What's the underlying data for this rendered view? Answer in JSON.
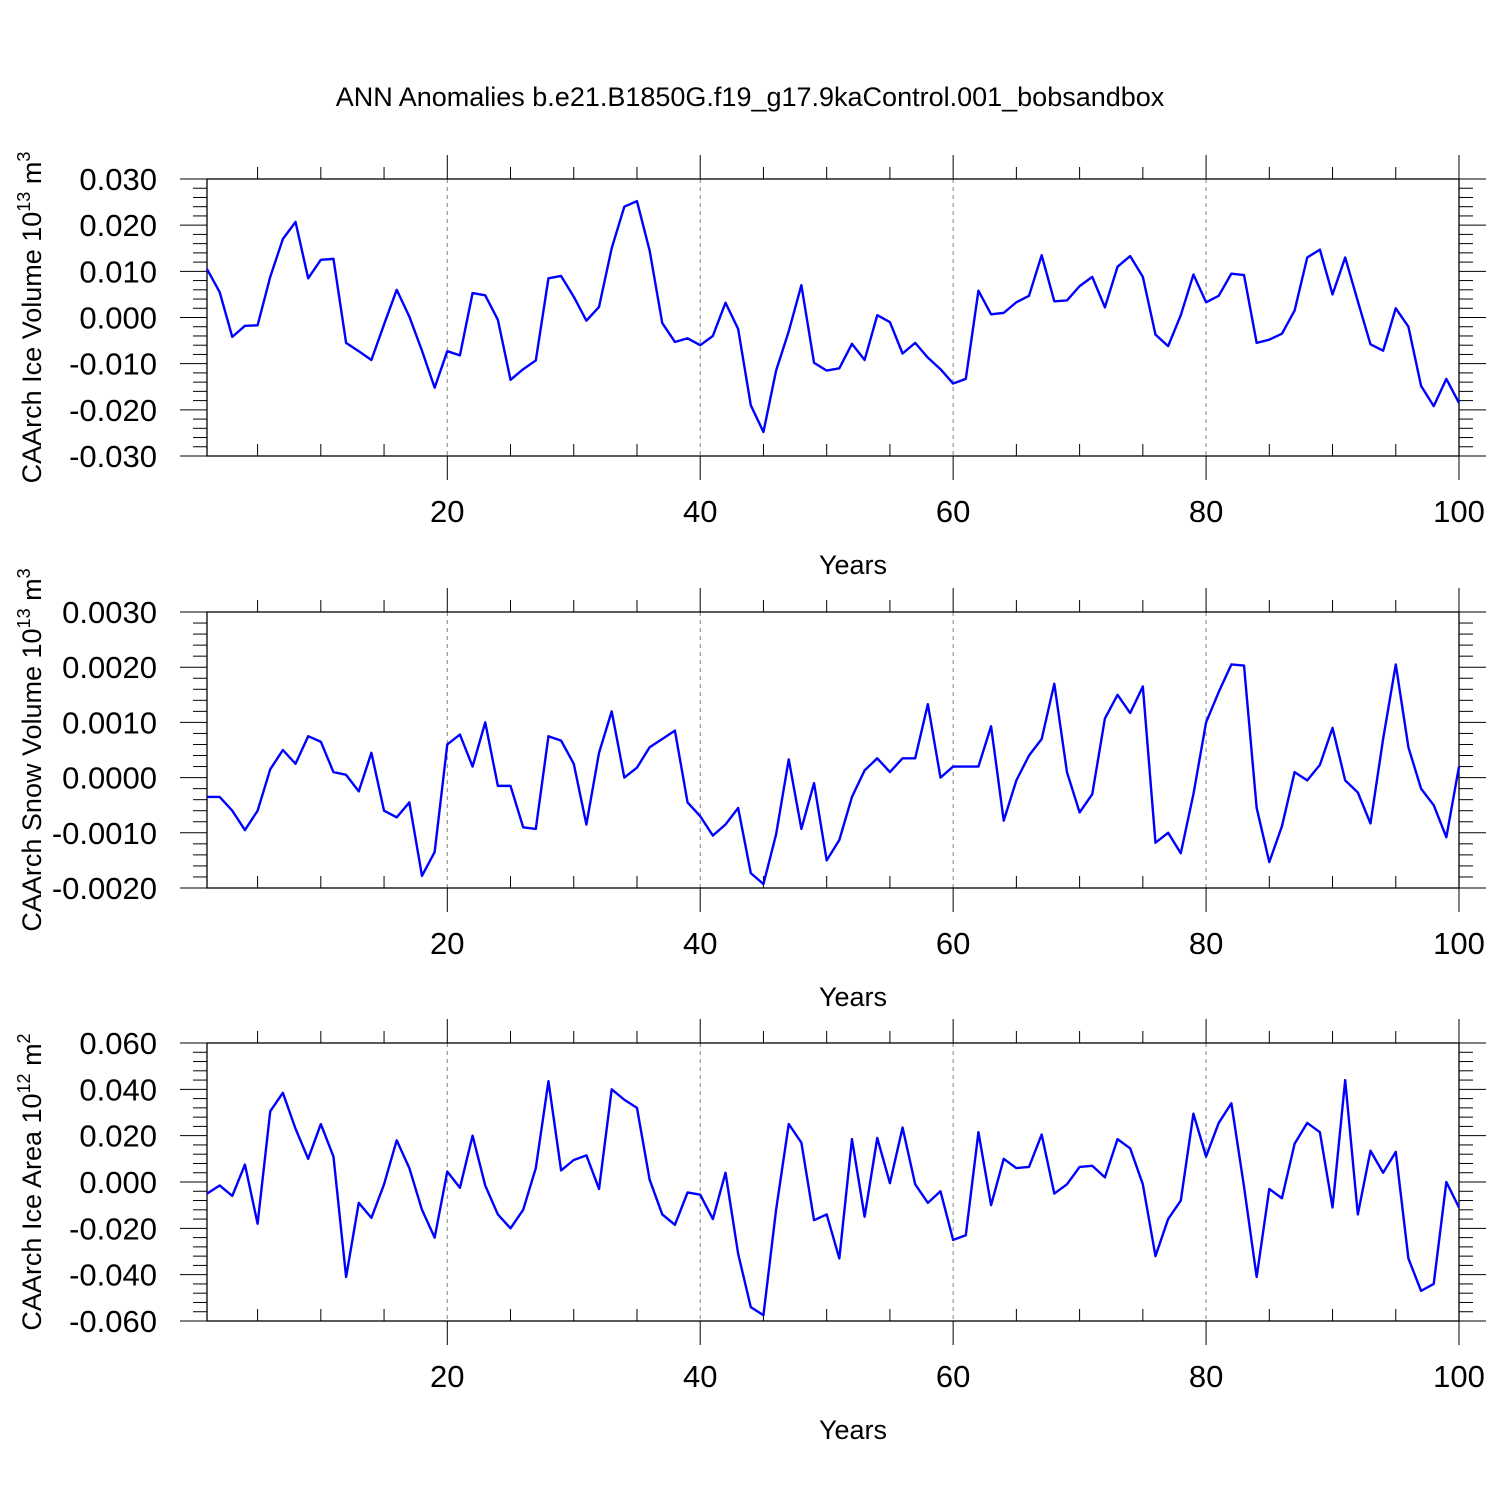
{
  "figure": {
    "title": "ANN Anomalies b.e21.B1850G.f19_g17.9kaControl.001_bobsandbox",
    "line_color": "#0000ff",
    "grid_color": "#808080"
  },
  "chart_data": [
    {
      "type": "line",
      "xlabel": "Years",
      "ylabel": "CAArch Ice Volume",
      "yunit_base": "10",
      "yunit_exp": "13",
      "yunit_suffix": "m",
      "yunit_power": "3",
      "xlim": [
        1,
        100
      ],
      "ylim": [
        -0.03,
        0.03
      ],
      "xticks": [
        20,
        40,
        60,
        80,
        100
      ],
      "xtick_labels": [
        "20",
        "40",
        "60",
        "80",
        "100"
      ],
      "yticks": [
        -0.03,
        -0.02,
        -0.01,
        0.0,
        0.01,
        0.02,
        0.03
      ],
      "ytick_labels": [
        "-0.030",
        "-0.020",
        "-0.010",
        "0.000",
        "0.010",
        "0.020",
        "0.030"
      ],
      "grid": "vertical dashed at major x ticks",
      "series": [
        {
          "x": [
            1,
            2,
            3,
            4,
            5,
            6,
            7,
            8,
            9,
            10,
            11,
            12,
            13,
            14,
            15,
            16,
            17,
            18,
            19,
            20,
            21,
            22,
            23,
            24,
            25,
            26,
            27,
            28,
            29,
            30,
            31,
            32,
            33,
            34,
            35,
            36,
            37,
            38,
            39,
            40,
            41,
            42,
            43,
            44,
            45,
            46,
            47,
            48,
            49,
            50,
            51,
            52,
            53,
            54,
            55,
            56,
            57,
            58,
            59,
            60,
            61,
            62,
            63,
            64,
            65,
            66,
            67,
            68,
            69,
            70,
            71,
            72,
            73,
            74,
            75,
            76,
            77,
            78,
            79,
            80,
            81,
            82,
            83,
            84,
            85,
            86,
            87,
            88,
            89,
            90,
            91,
            92,
            93,
            94,
            95,
            96,
            97,
            98,
            99,
            100
          ],
          "values": [
            0.0105,
            0.0055,
            -0.0042,
            -0.0018,
            -0.0017,
            0.0088,
            0.017,
            0.0207,
            0.0085,
            0.0125,
            0.0127,
            -0.0055,
            -0.0073,
            -0.0092,
            -0.0015,
            0.006,
            0.0002,
            -0.0072,
            -0.0152,
            -0.0073,
            -0.0082,
            0.0053,
            0.0048,
            -0.0005,
            -0.0135,
            -0.0112,
            -0.0093,
            0.0085,
            0.009,
            0.0045,
            -0.0007,
            0.0023,
            0.015,
            0.024,
            0.0252,
            0.0145,
            -0.0012,
            -0.0053,
            -0.0045,
            -0.006,
            -0.004,
            0.0032,
            -0.0025,
            -0.019,
            -0.0248,
            -0.0115,
            -0.003,
            0.007,
            -0.0098,
            -0.0115,
            -0.011,
            -0.0057,
            -0.0092,
            0.0005,
            -0.001,
            -0.0078,
            -0.0055,
            -0.0087,
            -0.0112,
            -0.0143,
            -0.0133,
            0.0058,
            0.0007,
            0.001,
            0.0033,
            0.0047,
            0.0135,
            0.0035,
            0.0037,
            0.0068,
            0.0088,
            0.0022,
            0.011,
            0.0133,
            0.0088,
            -0.0037,
            -0.0062,
            0.0005,
            0.0093,
            0.0033,
            0.0047,
            0.0095,
            0.0092,
            -0.0055,
            -0.0048,
            -0.0035,
            0.0015,
            0.013,
            0.0147,
            0.005,
            0.013,
            0.0035,
            -0.0058,
            -0.0072,
            0.002,
            -0.002,
            -0.0148,
            -0.0192,
            -0.0133,
            -0.0185
          ]
        }
      ]
    },
    {
      "type": "line",
      "xlabel": "Years",
      "ylabel": "CAArch Snow Volume",
      "yunit_base": "10",
      "yunit_exp": "13",
      "yunit_suffix": "m",
      "yunit_power": "3",
      "xlim": [
        1,
        100
      ],
      "ylim": [
        -0.002,
        0.003
      ],
      "xticks": [
        20,
        40,
        60,
        80,
        100
      ],
      "xtick_labels": [
        "20",
        "40",
        "60",
        "80",
        "100"
      ],
      "yticks": [
        -0.002,
        -0.001,
        0.0,
        0.001,
        0.002,
        0.003
      ],
      "ytick_labels": [
        "-0.0020",
        "-0.0010",
        "0.0000",
        "0.0010",
        "0.0020",
        "0.0030"
      ],
      "grid": "vertical dashed at major x ticks",
      "series": [
        {
          "x": [
            1,
            2,
            3,
            4,
            5,
            6,
            7,
            8,
            9,
            10,
            11,
            12,
            13,
            14,
            15,
            16,
            17,
            18,
            19,
            20,
            21,
            22,
            23,
            24,
            25,
            26,
            27,
            28,
            29,
            30,
            31,
            32,
            33,
            34,
            35,
            36,
            37,
            38,
            39,
            40,
            41,
            42,
            43,
            44,
            45,
            46,
            47,
            48,
            49,
            50,
            51,
            52,
            53,
            54,
            55,
            56,
            57,
            58,
            59,
            60,
            61,
            62,
            63,
            64,
            65,
            66,
            67,
            68,
            69,
            70,
            71,
            72,
            73,
            74,
            75,
            76,
            77,
            78,
            79,
            80,
            81,
            82,
            83,
            84,
            85,
            86,
            87,
            88,
            89,
            90,
            91,
            92,
            93,
            94,
            95,
            96,
            97,
            98,
            99,
            100
          ],
          "values": [
            -0.00035,
            -0.00035,
            -0.0006,
            -0.00095,
            -0.0006,
            0.00015,
            0.0005,
            0.00025,
            0.00075,
            0.00065,
            0.0001,
            5e-05,
            -0.00025,
            0.00045,
            -0.0006,
            -0.00072,
            -0.00045,
            -0.00178,
            -0.00135,
            0.0006,
            0.00078,
            0.0002,
            0.001,
            -0.00015,
            -0.00015,
            -0.0009,
            -0.00093,
            0.00075,
            0.00067,
            0.00025,
            -0.00085,
            0.00045,
            0.0012,
            0.0,
            0.00018,
            0.00055,
            0.0007,
            0.00085,
            -0.00045,
            -0.0007,
            -0.00105,
            -0.00085,
            -0.00055,
            -0.00173,
            -0.00193,
            -0.00103,
            0.00033,
            -0.00093,
            -0.0001,
            -0.0015,
            -0.00113,
            -0.00035,
            0.00013,
            0.00035,
            0.0001,
            0.00035,
            0.00035,
            0.00133,
            0.0,
            0.0002,
            0.0002,
            0.0002,
            0.00093,
            -0.00078,
            -5e-05,
            0.0004,
            0.0007,
            0.0017,
            0.0001,
            -0.00063,
            -0.0003,
            0.00107,
            0.0015,
            0.00117,
            0.00165,
            -0.00118,
            -0.001,
            -0.00137,
            -0.0003,
            0.001,
            0.00155,
            0.00205,
            0.00203,
            -0.00055,
            -0.00153,
            -0.00088,
            0.0001,
            -5e-05,
            0.00023,
            0.0009,
            -5e-05,
            -0.00027,
            -0.00083,
            0.0007,
            0.00205,
            0.00055,
            -0.0002,
            -0.0005,
            -0.00108,
            0.0002
          ]
        }
      ]
    },
    {
      "type": "line",
      "xlabel": "Years",
      "ylabel": "CAArch Ice Area",
      "yunit_base": "10",
      "yunit_exp": "12",
      "yunit_suffix": "m",
      "yunit_power": "2",
      "xlim": [
        1,
        100
      ],
      "ylim": [
        -0.06,
        0.06
      ],
      "xticks": [
        20,
        40,
        60,
        80,
        100
      ],
      "xtick_labels": [
        "20",
        "40",
        "60",
        "80",
        "100"
      ],
      "yticks": [
        -0.06,
        -0.04,
        -0.02,
        0.0,
        0.02,
        0.04,
        0.06
      ],
      "ytick_labels": [
        "-0.060",
        "-0.040",
        "-0.020",
        "0.000",
        "0.020",
        "0.040",
        "0.060"
      ],
      "grid": "vertical dashed at major x ticks",
      "series": [
        {
          "x": [
            1,
            2,
            3,
            4,
            5,
            6,
            7,
            8,
            9,
            10,
            11,
            12,
            13,
            14,
            15,
            16,
            17,
            18,
            19,
            20,
            21,
            22,
            23,
            24,
            25,
            26,
            27,
            28,
            29,
            30,
            31,
            32,
            33,
            34,
            35,
            36,
            37,
            38,
            39,
            40,
            41,
            42,
            43,
            44,
            45,
            46,
            47,
            48,
            49,
            50,
            51,
            52,
            53,
            54,
            55,
            56,
            57,
            58,
            59,
            60,
            61,
            62,
            63,
            64,
            65,
            66,
            67,
            68,
            69,
            70,
            71,
            72,
            73,
            74,
            75,
            76,
            77,
            78,
            79,
            80,
            81,
            82,
            83,
            84,
            85,
            86,
            87,
            88,
            89,
            90,
            91,
            92,
            93,
            94,
            95,
            96,
            97,
            98,
            99,
            100
          ],
          "values": [
            -0.005,
            -0.0015,
            -0.006,
            0.0075,
            -0.018,
            0.0305,
            0.0385,
            0.023,
            0.01,
            0.025,
            0.011,
            -0.041,
            -0.009,
            -0.0155,
            -0.001,
            0.018,
            0.006,
            -0.012,
            -0.024,
            0.0045,
            -0.0025,
            0.02,
            -0.0015,
            -0.014,
            -0.02,
            -0.012,
            0.006,
            0.0435,
            0.005,
            0.0095,
            0.0115,
            -0.003,
            0.04,
            0.0355,
            0.032,
            0.001,
            -0.014,
            -0.0185,
            -0.0045,
            -0.0055,
            -0.016,
            0.004,
            -0.031,
            -0.054,
            -0.0575,
            -0.012,
            0.025,
            0.017,
            -0.0165,
            -0.014,
            -0.033,
            0.0185,
            -0.015,
            0.019,
            -0.0005,
            0.0235,
            -0.001,
            -0.009,
            -0.004,
            -0.025,
            -0.023,
            0.0215,
            -0.01,
            0.01,
            0.006,
            0.0065,
            0.0205,
            -0.005,
            -0.001,
            0.0065,
            0.007,
            0.002,
            0.0185,
            0.0145,
            -0.001,
            -0.032,
            -0.016,
            -0.008,
            0.0295,
            0.011,
            0.0255,
            0.034,
            -0.002,
            -0.041,
            -0.003,
            -0.007,
            0.0165,
            0.0255,
            0.0215,
            -0.011,
            0.044,
            -0.014,
            0.0135,
            0.004,
            0.013,
            -0.033,
            -0.047,
            -0.044,
            0.0,
            -0.011
          ]
        }
      ]
    }
  ]
}
